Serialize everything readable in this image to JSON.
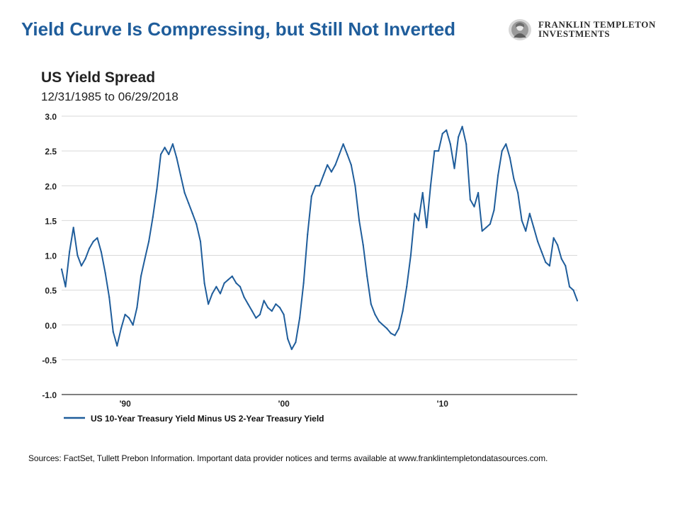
{
  "header": {
    "headline": "Yield Curve Is Compressing, but Still Not Inverted",
    "brand_line1": "FRANKLIN TEMPLETON",
    "brand_line2": "INVESTMENTS",
    "logo_icon": "franklin-portrait-seal"
  },
  "chart_data": {
    "type": "line",
    "title": "US Yield Spread",
    "subtitle": "12/31/1985 to 06/29/2018",
    "xlabel": "",
    "ylabel": "",
    "x_range": [
      "1985-12-31",
      "2018-06-29"
    ],
    "x_ticks": [
      {
        "date": "1990-01-01",
        "label": "'90"
      },
      {
        "date": "2000-01-01",
        "label": "'00"
      },
      {
        "date": "2010-01-01",
        "label": "'10"
      }
    ],
    "ylim": [
      -1.0,
      3.0
    ],
    "y_ticks": [
      "-1.0",
      "-0.5",
      "0.0",
      "0.5",
      "1.0",
      "1.5",
      "2.0",
      "2.5",
      "3.0"
    ],
    "grid": true,
    "legend_position": "bottom-left",
    "line_color": "#1f5d9b",
    "series": [
      {
        "name": "US 10-Year Treasury Yield Minus US 2-Year Treasury Yield",
        "points": [
          [
            "1985-12-31",
            0.8
          ],
          [
            "1986-03-31",
            0.55
          ],
          [
            "1986-06-30",
            1.05
          ],
          [
            "1986-09-30",
            1.4
          ],
          [
            "1986-12-31",
            1.0
          ],
          [
            "1987-03-31",
            0.85
          ],
          [
            "1987-06-30",
            0.95
          ],
          [
            "1987-09-30",
            1.1
          ],
          [
            "1987-12-31",
            1.2
          ],
          [
            "1988-03-31",
            1.25
          ],
          [
            "1988-06-30",
            1.05
          ],
          [
            "1988-09-30",
            0.75
          ],
          [
            "1988-12-31",
            0.4
          ],
          [
            "1989-03-31",
            -0.1
          ],
          [
            "1989-06-30",
            -0.3
          ],
          [
            "1989-09-30",
            -0.05
          ],
          [
            "1989-12-31",
            0.15
          ],
          [
            "1990-03-31",
            0.1
          ],
          [
            "1990-06-30",
            0.0
          ],
          [
            "1990-09-30",
            0.25
          ],
          [
            "1990-12-31",
            0.7
          ],
          [
            "1991-03-31",
            0.95
          ],
          [
            "1991-06-30",
            1.2
          ],
          [
            "1991-09-30",
            1.55
          ],
          [
            "1991-12-31",
            1.95
          ],
          [
            "1992-03-31",
            2.45
          ],
          [
            "1992-06-30",
            2.55
          ],
          [
            "1992-09-30",
            2.45
          ],
          [
            "1992-12-31",
            2.6
          ],
          [
            "1993-03-31",
            2.4
          ],
          [
            "1993-06-30",
            2.15
          ],
          [
            "1993-09-30",
            1.9
          ],
          [
            "1993-12-31",
            1.75
          ],
          [
            "1994-03-31",
            1.6
          ],
          [
            "1994-06-30",
            1.45
          ],
          [
            "1994-09-30",
            1.2
          ],
          [
            "1994-12-31",
            0.6
          ],
          [
            "1995-03-31",
            0.3
          ],
          [
            "1995-06-30",
            0.45
          ],
          [
            "1995-09-30",
            0.55
          ],
          [
            "1995-12-31",
            0.45
          ],
          [
            "1996-03-31",
            0.6
          ],
          [
            "1996-06-30",
            0.65
          ],
          [
            "1996-09-30",
            0.7
          ],
          [
            "1996-12-31",
            0.6
          ],
          [
            "1997-03-31",
            0.55
          ],
          [
            "1997-06-30",
            0.4
          ],
          [
            "1997-09-30",
            0.3
          ],
          [
            "1997-12-31",
            0.2
          ],
          [
            "1998-03-31",
            0.1
          ],
          [
            "1998-06-30",
            0.15
          ],
          [
            "1998-09-30",
            0.35
          ],
          [
            "1998-12-31",
            0.25
          ],
          [
            "1999-03-31",
            0.2
          ],
          [
            "1999-06-30",
            0.3
          ],
          [
            "1999-09-30",
            0.25
          ],
          [
            "1999-12-31",
            0.15
          ],
          [
            "2000-03-31",
            -0.2
          ],
          [
            "2000-06-30",
            -0.35
          ],
          [
            "2000-09-30",
            -0.25
          ],
          [
            "2000-12-31",
            0.1
          ],
          [
            "2001-03-31",
            0.6
          ],
          [
            "2001-06-30",
            1.3
          ],
          [
            "2001-09-30",
            1.85
          ],
          [
            "2001-12-31",
            2.0
          ],
          [
            "2002-03-31",
            2.0
          ],
          [
            "2002-06-30",
            2.15
          ],
          [
            "2002-09-30",
            2.3
          ],
          [
            "2002-12-31",
            2.2
          ],
          [
            "2003-03-31",
            2.3
          ],
          [
            "2003-06-30",
            2.45
          ],
          [
            "2003-09-30",
            2.6
          ],
          [
            "2003-12-31",
            2.45
          ],
          [
            "2004-03-31",
            2.3
          ],
          [
            "2004-06-30",
            2.0
          ],
          [
            "2004-09-30",
            1.5
          ],
          [
            "2004-12-31",
            1.15
          ],
          [
            "2005-03-31",
            0.7
          ],
          [
            "2005-06-30",
            0.3
          ],
          [
            "2005-09-30",
            0.15
          ],
          [
            "2005-12-31",
            0.05
          ],
          [
            "2006-03-31",
            0.0
          ],
          [
            "2006-06-30",
            -0.05
          ],
          [
            "2006-09-30",
            -0.12
          ],
          [
            "2006-12-31",
            -0.15
          ],
          [
            "2007-03-31",
            -0.05
          ],
          [
            "2007-06-30",
            0.2
          ],
          [
            "2007-09-30",
            0.55
          ],
          [
            "2007-12-31",
            1.0
          ],
          [
            "2008-03-31",
            1.6
          ],
          [
            "2008-06-30",
            1.5
          ],
          [
            "2008-09-30",
            1.9
          ],
          [
            "2008-12-31",
            1.4
          ],
          [
            "2009-03-31",
            2.0
          ],
          [
            "2009-06-30",
            2.5
          ],
          [
            "2009-09-30",
            2.5
          ],
          [
            "2009-12-31",
            2.75
          ],
          [
            "2010-03-31",
            2.8
          ],
          [
            "2010-06-30",
            2.6
          ],
          [
            "2010-09-30",
            2.25
          ],
          [
            "2010-12-31",
            2.7
          ],
          [
            "2011-03-31",
            2.85
          ],
          [
            "2011-06-30",
            2.6
          ],
          [
            "2011-09-30",
            1.8
          ],
          [
            "2011-12-31",
            1.7
          ],
          [
            "2012-03-31",
            1.9
          ],
          [
            "2012-06-30",
            1.35
          ],
          [
            "2012-09-30",
            1.4
          ],
          [
            "2012-12-31",
            1.45
          ],
          [
            "2013-03-31",
            1.65
          ],
          [
            "2013-06-30",
            2.15
          ],
          [
            "2013-09-30",
            2.5
          ],
          [
            "2013-12-31",
            2.6
          ],
          [
            "2014-03-31",
            2.4
          ],
          [
            "2014-06-30",
            2.1
          ],
          [
            "2014-09-30",
            1.9
          ],
          [
            "2014-12-31",
            1.5
          ],
          [
            "2015-03-31",
            1.35
          ],
          [
            "2015-06-30",
            1.6
          ],
          [
            "2015-09-30",
            1.4
          ],
          [
            "2015-12-31",
            1.2
          ],
          [
            "2016-03-31",
            1.05
          ],
          [
            "2016-06-30",
            0.9
          ],
          [
            "2016-09-30",
            0.85
          ],
          [
            "2016-12-31",
            1.25
          ],
          [
            "2017-03-31",
            1.15
          ],
          [
            "2017-06-30",
            0.95
          ],
          [
            "2017-09-30",
            0.85
          ],
          [
            "2017-12-31",
            0.55
          ],
          [
            "2018-03-31",
            0.5
          ],
          [
            "2018-06-29",
            0.35
          ]
        ]
      }
    ]
  },
  "footer": {
    "sources": "Sources: FactSet, Tullett Prebon Information. Important data provider notices and terms available at www.franklintempletondatasources.com."
  }
}
